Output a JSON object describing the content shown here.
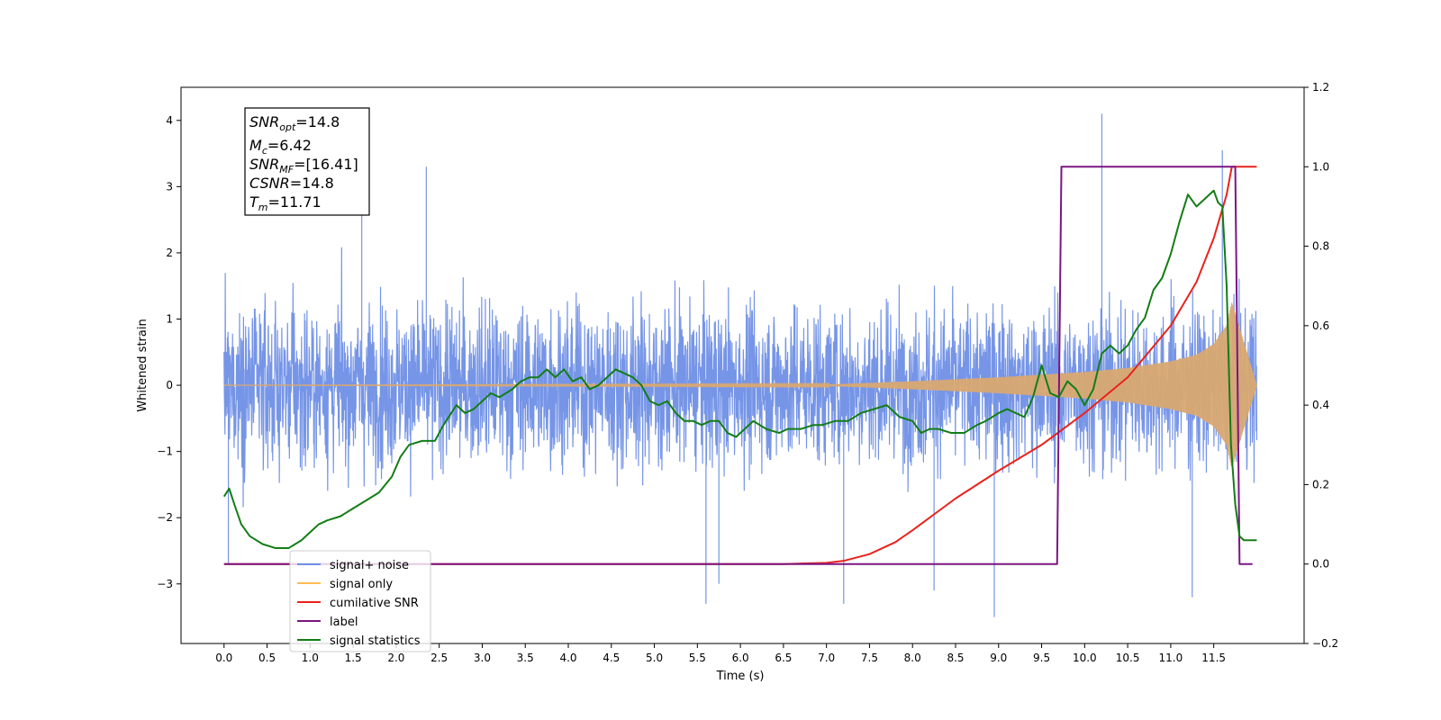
{
  "chart_data": {
    "type": "line",
    "xlabel": "Time (s)",
    "ylabel": "Whitened strain",
    "ylabel_right": "",
    "xlim": [
      -0.5,
      12.55
    ],
    "ylim": [
      -3.9,
      4.5
    ],
    "ylim_right": [
      -0.2,
      1.2
    ],
    "x_ticks": [
      0.0,
      0.5,
      1.0,
      1.5,
      2.0,
      2.5,
      3.0,
      3.5,
      4.0,
      4.5,
      5.0,
      5.5,
      6.0,
      6.5,
      7.0,
      7.5,
      8.0,
      8.5,
      9.0,
      9.5,
      10.0,
      10.5,
      11.0,
      11.5
    ],
    "x_tick_labels": [
      "0.0",
      "0.5",
      "1.0",
      "1.5",
      "2.0",
      "2.5",
      "3.0",
      "3.5",
      "4.0",
      "4.5",
      "5.0",
      "5.5",
      "6.0",
      "6.5",
      "7.0",
      "7.5",
      "8.0",
      "8.5",
      "9.0",
      "9.5",
      "10.0",
      "10.5",
      "11.0",
      "11.5"
    ],
    "y_ticks": [
      -3,
      -2,
      -1,
      0,
      1,
      2,
      3,
      4
    ],
    "y_tick_labels": [
      "−3",
      "−2",
      "−1",
      "0",
      "1",
      "2",
      "3",
      "4"
    ],
    "y_right_ticks": [
      -0.2,
      0.0,
      0.2,
      0.4,
      0.6,
      0.8,
      1.0,
      1.2
    ],
    "y_right_tick_labels": [
      "−0.2",
      "0.0",
      "0.2",
      "0.4",
      "0.6",
      "0.8",
      "1.0",
      "1.2"
    ],
    "grid": false,
    "legend_position": "bottom-left",
    "info_box": {
      "snr_opt": {
        "main": "SNR",
        "sub": "opt",
        "value": "=14.8"
      },
      "mc": {
        "main": "M",
        "sub": "c",
        "value": "=6.42"
      },
      "snr_mf": {
        "main": "SNR",
        "sub": "MF",
        "value": "=[16.41]"
      },
      "csnr": {
        "main": "CSNR",
        "sub": "",
        "value": "=14.8"
      },
      "tm": {
        "main": "T",
        "sub": "m",
        "value": "=11.71"
      }
    },
    "series": [
      {
        "name": "signal+ noise",
        "color": "#6f8fe6",
        "axis": "left",
        "description_of_shape": "dense noise trace spanning roughly -2.5 to 2.5 with spikes, from t=0 to t=12",
        "envelope_x": [
          0,
          12
        ],
        "typical_amplitude": 2.0,
        "spikes": [
          [
            0.05,
            -2.7
          ],
          [
            1.6,
            3.4
          ],
          [
            2.35,
            3.3
          ],
          [
            5.6,
            -3.3
          ],
          [
            5.75,
            -3.0
          ],
          [
            7.2,
            -3.3
          ],
          [
            8.25,
            -3.1
          ],
          [
            8.95,
            -3.5
          ],
          [
            10.2,
            4.1
          ],
          [
            11.6,
            3.55
          ],
          [
            11.25,
            -3.2
          ]
        ]
      },
      {
        "name": "signal only",
        "color": "#ffbb55",
        "axis": "left",
        "description_of_shape": "chirp oscillation with growing envelope ending near t=11.71",
        "envelope_x": [
          0,
          7.0,
          8.0,
          9.0,
          10.0,
          10.5,
          11.0,
          11.3,
          11.5,
          11.65,
          11.71,
          12.0
        ],
        "envelope_amp": [
          0.0,
          0.01,
          0.06,
          0.12,
          0.2,
          0.26,
          0.36,
          0.46,
          0.62,
          0.9,
          1.25,
          0.0
        ]
      },
      {
        "name": "cumilative SNR",
        "color": "#e8231c",
        "axis": "right",
        "x": [
          0,
          6.5,
          7.0,
          7.2,
          7.5,
          7.8,
          8.0,
          8.5,
          9.0,
          9.5,
          10.0,
          10.5,
          11.0,
          11.3,
          11.5,
          11.65,
          11.71,
          12.0
        ],
        "y": [
          0.0,
          0.0,
          0.003,
          0.008,
          0.025,
          0.055,
          0.085,
          0.165,
          0.235,
          0.3,
          0.38,
          0.47,
          0.6,
          0.71,
          0.82,
          0.93,
          1.0,
          1.0
        ]
      },
      {
        "name": "label",
        "color": "#7a1682",
        "axis": "right",
        "x": [
          0,
          9.68,
          9.73,
          11.75,
          11.8,
          11.95
        ],
        "y": [
          0,
          0,
          1,
          1,
          0,
          0
        ]
      },
      {
        "name": "signal statistics",
        "color": "#137d16",
        "axis": "right",
        "x": [
          0.0,
          0.06,
          0.12,
          0.2,
          0.3,
          0.45,
          0.6,
          0.75,
          0.9,
          1.0,
          1.1,
          1.2,
          1.35,
          1.5,
          1.65,
          1.8,
          1.95,
          2.05,
          2.15,
          2.3,
          2.45,
          2.55,
          2.7,
          2.8,
          2.9,
          3.0,
          3.1,
          3.2,
          3.35,
          3.45,
          3.55,
          3.65,
          3.75,
          3.85,
          3.95,
          4.05,
          4.15,
          4.25,
          4.35,
          4.45,
          4.55,
          4.65,
          4.75,
          4.85,
          4.95,
          5.05,
          5.15,
          5.25,
          5.35,
          5.45,
          5.55,
          5.65,
          5.75,
          5.85,
          5.95,
          6.05,
          6.15,
          6.3,
          6.45,
          6.55,
          6.7,
          6.85,
          6.95,
          7.1,
          7.25,
          7.4,
          7.55,
          7.7,
          7.85,
          8.0,
          8.1,
          8.2,
          8.3,
          8.45,
          8.6,
          8.75,
          8.85,
          9.0,
          9.1,
          9.2,
          9.3,
          9.4,
          9.5,
          9.6,
          9.7,
          9.8,
          9.9,
          10.0,
          10.1,
          10.2,
          10.3,
          10.4,
          10.5,
          10.6,
          10.7,
          10.8,
          10.9,
          11.0,
          11.1,
          11.2,
          11.3,
          11.4,
          11.5,
          11.55,
          11.6,
          11.65,
          11.7,
          11.75,
          11.8,
          11.85,
          11.9,
          12.0
        ],
        "y": [
          0.17,
          0.19,
          0.15,
          0.1,
          0.07,
          0.05,
          0.04,
          0.04,
          0.06,
          0.08,
          0.1,
          0.11,
          0.12,
          0.14,
          0.16,
          0.18,
          0.22,
          0.27,
          0.3,
          0.31,
          0.31,
          0.35,
          0.4,
          0.38,
          0.39,
          0.41,
          0.43,
          0.42,
          0.44,
          0.46,
          0.47,
          0.47,
          0.49,
          0.47,
          0.49,
          0.46,
          0.47,
          0.44,
          0.45,
          0.47,
          0.49,
          0.48,
          0.47,
          0.45,
          0.41,
          0.4,
          0.41,
          0.38,
          0.36,
          0.36,
          0.35,
          0.36,
          0.36,
          0.33,
          0.32,
          0.34,
          0.36,
          0.34,
          0.33,
          0.34,
          0.34,
          0.35,
          0.35,
          0.36,
          0.36,
          0.38,
          0.39,
          0.4,
          0.37,
          0.36,
          0.33,
          0.34,
          0.34,
          0.33,
          0.33,
          0.35,
          0.36,
          0.38,
          0.39,
          0.38,
          0.37,
          0.42,
          0.5,
          0.43,
          0.42,
          0.46,
          0.44,
          0.4,
          0.44,
          0.53,
          0.55,
          0.53,
          0.55,
          0.59,
          0.62,
          0.69,
          0.72,
          0.78,
          0.86,
          0.93,
          0.9,
          0.92,
          0.94,
          0.91,
          0.9,
          0.7,
          0.3,
          0.15,
          0.07,
          0.06,
          0.06,
          0.06
        ]
      }
    ]
  }
}
